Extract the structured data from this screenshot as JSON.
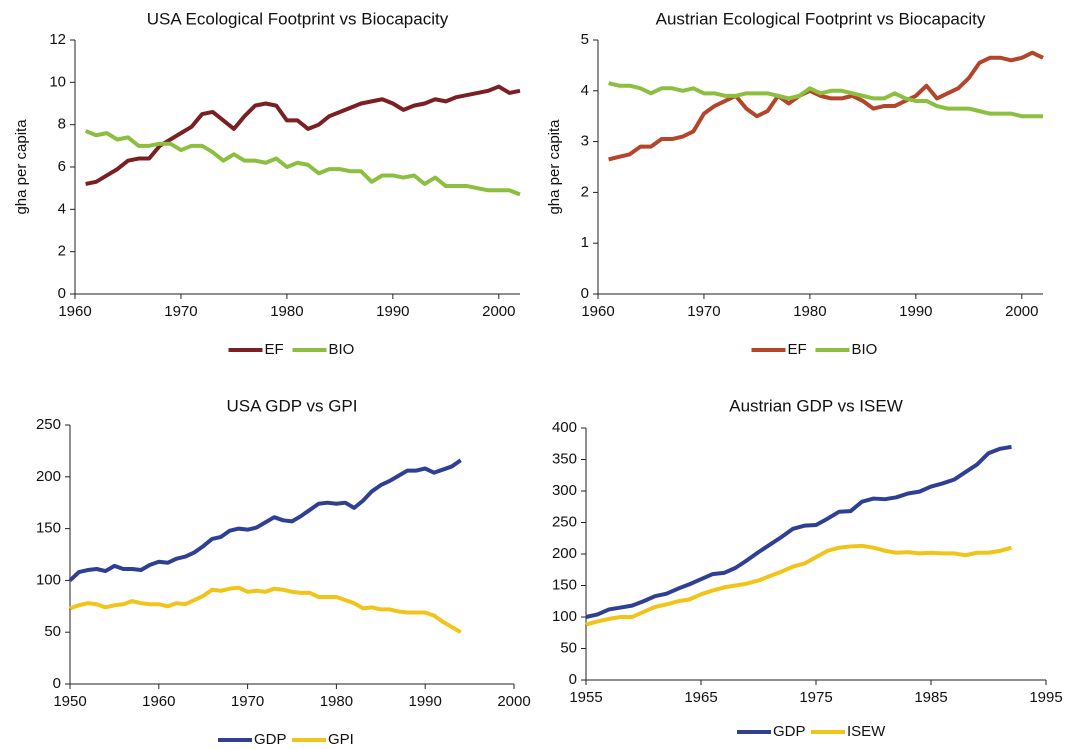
{
  "chart_data": [
    {
      "type": "line",
      "title": "USA Ecological Footprint vs Biocapacity",
      "ylabel": "gha per capita",
      "x": [
        1961,
        1962,
        1963,
        1964,
        1965,
        1966,
        1967,
        1968,
        1969,
        1970,
        1971,
        1972,
        1973,
        1974,
        1975,
        1976,
        1977,
        1978,
        1979,
        1980,
        1981,
        1982,
        1983,
        1984,
        1985,
        1986,
        1987,
        1988,
        1989,
        1990,
        1991,
        1992,
        1993,
        1994,
        1995,
        1996,
        1997,
        1998,
        1999,
        2000,
        2001,
        2002
      ],
      "xlim": [
        1960,
        2002
      ],
      "xticks": [
        1960,
        1970,
        1980,
        1990,
        2000
      ],
      "ylim": [
        0,
        12
      ],
      "yticks": [
        0,
        2,
        4,
        6,
        8,
        10,
        12
      ],
      "grid": false,
      "legend": "bottom",
      "series": [
        {
          "name": "EF",
          "color": "#7a1f22",
          "values": [
            5.2,
            5.3,
            5.6,
            5.9,
            6.3,
            6.4,
            6.4,
            7.0,
            7.3,
            7.6,
            7.9,
            8.5,
            8.6,
            8.2,
            7.8,
            8.4,
            8.9,
            9.0,
            8.9,
            8.2,
            8.2,
            7.8,
            8.0,
            8.4,
            8.6,
            8.8,
            9.0,
            9.1,
            9.2,
            9.0,
            8.7,
            8.9,
            9.0,
            9.2,
            9.1,
            9.3,
            9.4,
            9.5,
            9.6,
            9.8,
            9.5,
            9.6
          ]
        },
        {
          "name": "BIO",
          "color": "#8cbf3f",
          "values": [
            7.7,
            7.5,
            7.6,
            7.3,
            7.4,
            7.0,
            7.0,
            7.1,
            7.1,
            6.8,
            7.0,
            7.0,
            6.7,
            6.3,
            6.6,
            6.3,
            6.3,
            6.2,
            6.4,
            6.0,
            6.2,
            6.1,
            5.7,
            5.9,
            5.9,
            5.8,
            5.8,
            5.3,
            5.6,
            5.6,
            5.5,
            5.6,
            5.2,
            5.5,
            5.1,
            5.1,
            5.1,
            5.0,
            4.9,
            4.9,
            4.9,
            4.7
          ]
        }
      ]
    },
    {
      "type": "line",
      "title": "Austrian Ecological Footprint vs Biocapacity",
      "ylabel": "gha per capita",
      "x": [
        1961,
        1962,
        1963,
        1964,
        1965,
        1966,
        1967,
        1968,
        1969,
        1970,
        1971,
        1972,
        1973,
        1974,
        1975,
        1976,
        1977,
        1978,
        1979,
        1980,
        1981,
        1982,
        1983,
        1984,
        1985,
        1986,
        1987,
        1988,
        1989,
        1990,
        1991,
        1992,
        1993,
        1994,
        1995,
        1996,
        1997,
        1998,
        1999,
        2000,
        2001,
        2002
      ],
      "xlim": [
        1960,
        2002
      ],
      "xticks": [
        1960,
        1970,
        1980,
        1990,
        2000
      ],
      "ylim": [
        0,
        5
      ],
      "yticks": [
        0,
        1,
        2,
        3,
        4,
        5
      ],
      "grid": false,
      "legend": "bottom",
      "series": [
        {
          "name": "EF",
          "color": "#b2452a",
          "values": [
            2.65,
            2.7,
            2.75,
            2.9,
            2.9,
            3.05,
            3.05,
            3.1,
            3.2,
            3.55,
            3.7,
            3.8,
            3.9,
            3.65,
            3.5,
            3.6,
            3.9,
            3.75,
            3.9,
            4.0,
            3.9,
            3.85,
            3.85,
            3.9,
            3.8,
            3.65,
            3.7,
            3.7,
            3.8,
            3.9,
            4.1,
            3.85,
            3.95,
            4.05,
            4.25,
            4.55,
            4.65,
            4.65,
            4.6,
            4.65,
            4.75,
            4.65
          ]
        },
        {
          "name": "BIO",
          "color": "#8cbf3f",
          "values": [
            4.15,
            4.1,
            4.1,
            4.05,
            3.95,
            4.05,
            4.05,
            4.0,
            4.05,
            3.95,
            3.95,
            3.9,
            3.9,
            3.95,
            3.95,
            3.95,
            3.9,
            3.85,
            3.9,
            4.05,
            3.95,
            4.0,
            4.0,
            3.95,
            3.9,
            3.85,
            3.85,
            3.95,
            3.85,
            3.8,
            3.8,
            3.7,
            3.65,
            3.65,
            3.65,
            3.6,
            3.55,
            3.55,
            3.55,
            3.5,
            3.5,
            3.5
          ]
        }
      ]
    },
    {
      "type": "line",
      "title": "USA GDP vs GPI",
      "x": [
        1950,
        1951,
        1952,
        1953,
        1954,
        1955,
        1956,
        1957,
        1958,
        1959,
        1960,
        1961,
        1962,
        1963,
        1964,
        1965,
        1966,
        1967,
        1968,
        1969,
        1970,
        1971,
        1972,
        1973,
        1974,
        1975,
        1976,
        1977,
        1978,
        1979,
        1980,
        1981,
        1982,
        1983,
        1984,
        1985,
        1986,
        1987,
        1988,
        1989,
        1990,
        1991,
        1992,
        1993,
        1994
      ],
      "xlim": [
        1950,
        2000
      ],
      "xticks": [
        1950,
        1960,
        1970,
        1980,
        1990,
        2000
      ],
      "ylim": [
        0,
        250
      ],
      "yticks": [
        0,
        50,
        100,
        150,
        200,
        250
      ],
      "grid": false,
      "legend": "bottom",
      "series": [
        {
          "name": "GDP",
          "color": "#2e3f94",
          "values": [
            100,
            108,
            110,
            111,
            109,
            114,
            111,
            111,
            110,
            115,
            118,
            117,
            121,
            123,
            127,
            133,
            140,
            142,
            148,
            150,
            149,
            151,
            156,
            161,
            158,
            157,
            162,
            168,
            174,
            175,
            174,
            175,
            170,
            177,
            186,
            192,
            196,
            201,
            206,
            206,
            208,
            204,
            207,
            210,
            216
          ]
        },
        {
          "name": "GPI",
          "color": "#f0c419",
          "values": [
            73,
            76,
            78,
            77,
            74,
            76,
            77,
            80,
            78,
            77,
            77,
            75,
            78,
            77,
            81,
            85,
            91,
            90,
            92,
            93,
            89,
            90,
            89,
            92,
            91,
            89,
            88,
            88,
            84,
            84,
            84,
            81,
            78,
            73,
            74,
            72,
            72,
            70,
            69,
            69,
            69,
            66,
            60,
            55,
            50
          ]
        }
      ]
    },
    {
      "type": "line",
      "title": "Austrian GDP vs ISEW",
      "x": [
        1955,
        1956,
        1957,
        1958,
        1959,
        1960,
        1961,
        1962,
        1963,
        1964,
        1965,
        1966,
        1967,
        1968,
        1969,
        1970,
        1971,
        1972,
        1973,
        1974,
        1975,
        1976,
        1977,
        1978,
        1979,
        1980,
        1981,
        1982,
        1983,
        1984,
        1985,
        1986,
        1987,
        1988,
        1989,
        1990,
        1991,
        1992
      ],
      "xlim": [
        1955,
        1995
      ],
      "xticks": [
        1955,
        1965,
        1975,
        1985,
        1995
      ],
      "ylim": [
        0,
        400
      ],
      "yticks": [
        0,
        50,
        100,
        150,
        200,
        250,
        300,
        350,
        400
      ],
      "grid": false,
      "legend": "bottom",
      "series": [
        {
          "name": "GDP",
          "color": "#2e3f94",
          "values": [
            100,
            104,
            112,
            115,
            118,
            125,
            133,
            137,
            145,
            152,
            160,
            168,
            170,
            178,
            190,
            203,
            215,
            227,
            240,
            245,
            246,
            256,
            267,
            268,
            283,
            288,
            287,
            290,
            296,
            299,
            307,
            312,
            318,
            330,
            342,
            360,
            367,
            370
          ]
        },
        {
          "name": "ISEW",
          "color": "#f0c419",
          "values": [
            88,
            93,
            97,
            100,
            100,
            108,
            116,
            120,
            125,
            128,
            136,
            142,
            147,
            150,
            153,
            158,
            165,
            172,
            180,
            185,
            195,
            205,
            210,
            212,
            213,
            210,
            205,
            202,
            203,
            201,
            202,
            201,
            201,
            198,
            202,
            202,
            205,
            210
          ]
        }
      ]
    }
  ]
}
